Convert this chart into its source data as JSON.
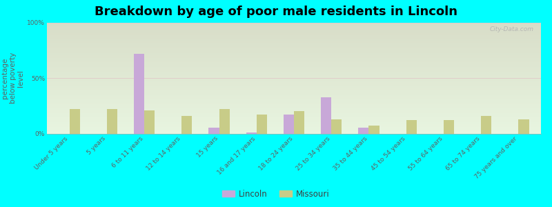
{
  "title": "Breakdown by age of poor male residents in Lincoln",
  "ylabel": "percentage\nbelow poverty\nlevel",
  "categories": [
    "Under 5 years",
    "5 years",
    "6 to 11 years",
    "12 to 14 years",
    "15 years",
    "16 and 17 years",
    "18 to 24 years",
    "25 to 34 years",
    "35 to 44 years",
    "45 to 54 years",
    "55 to 64 years",
    "65 to 74 years",
    "75 years and over"
  ],
  "lincoln_values": [
    0,
    0,
    72,
    0,
    5,
    1,
    17,
    33,
    5,
    0,
    0,
    0,
    0
  ],
  "missouri_values": [
    22,
    22,
    21,
    16,
    22,
    17,
    20,
    13,
    7,
    12,
    12,
    16,
    13
  ],
  "lincoln_color": "#c8a8d8",
  "missouri_color": "#c8cc88",
  "ylim": [
    0,
    100
  ],
  "yticks": [
    0,
    50,
    100
  ],
  "ytick_labels": [
    "0%",
    "50%",
    "100%"
  ],
  "bg_top_color": "#d8ddc8",
  "bg_bottom_color": "#e8f5e0",
  "outer_bg_color": "#00ffff",
  "bar_width": 0.28,
  "title_fontsize": 13,
  "tick_fontsize": 6.5,
  "ylabel_fontsize": 7.5,
  "watermark": "City-Data.com",
  "legend_marker_color_lincoln": "#d0a8e0",
  "legend_marker_color_missouri": "#d8d898"
}
